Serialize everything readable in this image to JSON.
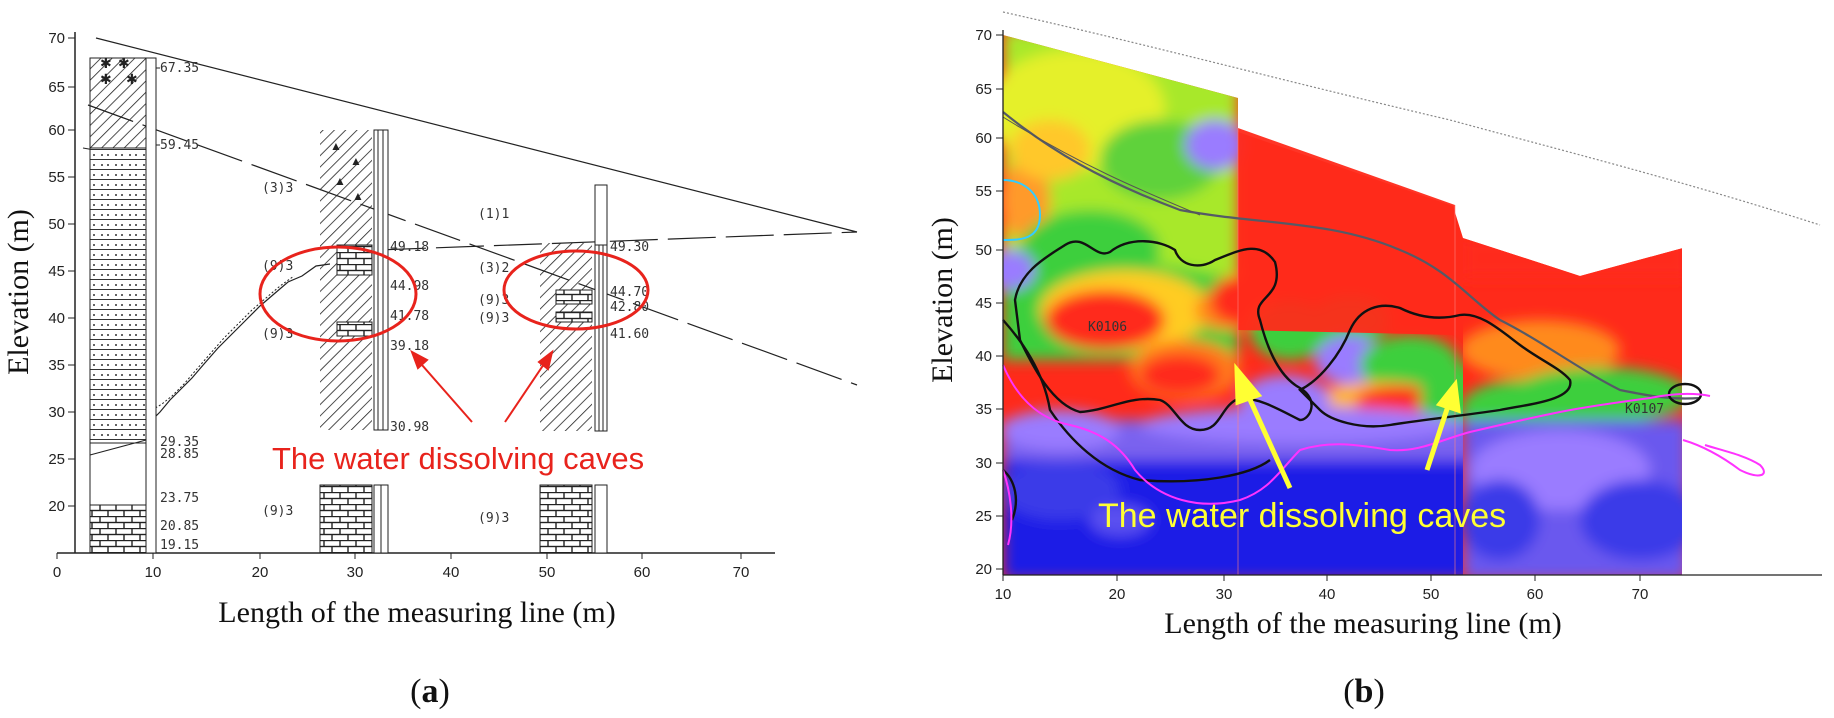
{
  "panel_a": {
    "label_open": "(",
    "label_letter": "a",
    "label_close": ")",
    "xlabel": "Length of the measuring line (m)",
    "ylabel": "Elevation (m)",
    "x_ticks": [
      "0",
      "10",
      "20",
      "30",
      "40",
      "50",
      "60",
      "70"
    ],
    "y_ticks": [
      "70",
      "65",
      "60",
      "55",
      "50",
      "45",
      "40",
      "35",
      "30",
      "25",
      "20"
    ],
    "depth_labels": [
      "67.35",
      "59.45",
      "49.18",
      "44.98",
      "41.78",
      "39.18",
      "30.98",
      "29.35",
      "28.85",
      "23.75",
      "20.85",
      "19.15",
      "49.30",
      "44.70",
      "42.80",
      "41.60"
    ],
    "unit_labels": [
      "(3)3",
      "(1)1",
      "(9)3",
      "(3)2",
      "(9)3",
      "(9)3",
      "(9)3",
      "(9)3",
      "(9)3"
    ],
    "callout": "The water dissolving caves"
  },
  "panel_b": {
    "label_open": "(",
    "label_letter": "b",
    "label_close": ")",
    "xlabel": "Length of the measuring line (m)",
    "ylabel": "Elevation (m)",
    "x_ticks": [
      "10",
      "20",
      "30",
      "40",
      "50",
      "60",
      "70"
    ],
    "y_ticks": [
      "70",
      "65",
      "60",
      "55",
      "50",
      "45",
      "40",
      "35",
      "30",
      "25",
      "20"
    ],
    "map_labels": [
      "K0106",
      "K0107"
    ],
    "callout": "The water dissolving caves",
    "colors": {
      "high": "#ff2a1a",
      "mid_high": "#ff8a1a",
      "mid": "#ffe21a",
      "low_mid": "#3ccf3c",
      "low": "#9a7cff",
      "lowest": "#1a1ae6"
    }
  }
}
